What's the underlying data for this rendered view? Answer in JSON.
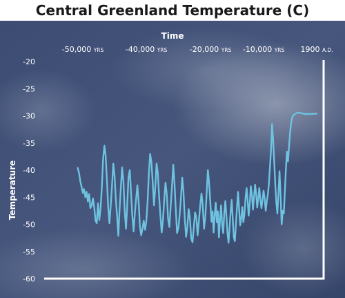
{
  "chart_data": {
    "type": "line",
    "title": "Central Greenland Temperature (C)",
    "xlabel": "Time",
    "ylabel": "Temperature",
    "xticks": [
      {
        "label": "-50,000",
        "unit": "YRS"
      },
      {
        "label": "-40,000",
        "unit": "YRS"
      },
      {
        "label": "-20,000",
        "unit": "YRS"
      },
      {
        "label": "-10,000",
        "unit": "YRS"
      },
      {
        "label": "1900",
        "unit": "A.D."
      }
    ],
    "yticks": [
      "-20",
      "-25",
      "-30",
      "-35",
      "-40",
      "-45",
      "-50",
      "-55",
      "-60"
    ],
    "ylim": [
      -60,
      -20
    ],
    "grid": false,
    "colors": {
      "line": "#6ec3e0",
      "axis": "#ffffff",
      "background": "#3b4a6e"
    },
    "x_note": "Values are the x-axis position in units of the printed tick sequence: 0 = -50,000 YRS, 1 = -40,000 YRS, 2 = -20,000 YRS, 3 = -10,000 YRS, 4 = 1900 A.D.",
    "series": [
      {
        "name": "",
        "points": [
          [
            -0.08,
            -39.6
          ],
          [
            -0.06,
            -40.5
          ],
          [
            -0.04,
            -42
          ],
          [
            -0.02,
            -43.1
          ],
          [
            0.0,
            -44.2
          ],
          [
            0.02,
            -43.5
          ],
          [
            0.04,
            -45
          ],
          [
            0.06,
            -44
          ],
          [
            0.08,
            -45.8
          ],
          [
            0.1,
            -44.4
          ],
          [
            0.12,
            -47
          ],
          [
            0.14,
            -46.5
          ],
          [
            0.16,
            -45.2
          ],
          [
            0.18,
            -46.9
          ],
          [
            0.2,
            -49.3
          ],
          [
            0.22,
            -49.8
          ],
          [
            0.24,
            -46.1
          ],
          [
            0.26,
            -49.2
          ],
          [
            0.28,
            -47
          ],
          [
            0.3,
            -43.2
          ],
          [
            0.32,
            -38
          ],
          [
            0.34,
            -35.5
          ],
          [
            0.36,
            -37.3
          ],
          [
            0.38,
            -42
          ],
          [
            0.4,
            -46.8
          ],
          [
            0.42,
            -49.8
          ],
          [
            0.44,
            -46.5
          ],
          [
            0.46,
            -43
          ],
          [
            0.48,
            -38.8
          ],
          [
            0.5,
            -41
          ],
          [
            0.52,
            -45.2
          ],
          [
            0.54,
            -48.5
          ],
          [
            0.56,
            -52.1
          ],
          [
            0.58,
            -47
          ],
          [
            0.6,
            -43.1
          ],
          [
            0.62,
            -39.5
          ],
          [
            0.64,
            -42.2
          ],
          [
            0.66,
            -47.5
          ],
          [
            0.68,
            -50.8
          ],
          [
            0.7,
            -46.5
          ],
          [
            0.72,
            -41.3
          ],
          [
            0.74,
            -40
          ],
          [
            0.76,
            -44.2
          ],
          [
            0.78,
            -48.5
          ],
          [
            0.8,
            -51.3
          ],
          [
            0.82,
            -48
          ],
          [
            0.84,
            -45.3
          ],
          [
            0.86,
            -42.8
          ],
          [
            0.88,
            -46
          ],
          [
            0.9,
            -50.4
          ],
          [
            0.92,
            -52
          ],
          [
            0.94,
            -50.8
          ],
          [
            0.96,
            -49.3
          ],
          [
            0.98,
            -51
          ],
          [
            1.0,
            -49.5
          ],
          [
            1.02,
            -45.8
          ],
          [
            1.04,
            -40.8
          ],
          [
            1.06,
            -37
          ],
          [
            1.08,
            -38.5
          ],
          [
            1.1,
            -42.2
          ],
          [
            1.12,
            -46.5
          ],
          [
            1.14,
            -43.3
          ],
          [
            1.16,
            -38.8
          ],
          [
            1.18,
            -40.5
          ],
          [
            1.2,
            -44.8
          ],
          [
            1.22,
            -48.5
          ],
          [
            1.24,
            -51.5
          ],
          [
            1.26,
            -49.2
          ],
          [
            1.28,
            -45.5
          ],
          [
            1.3,
            -42.3
          ],
          [
            1.32,
            -44.6
          ],
          [
            1.34,
            -49
          ],
          [
            1.36,
            -50.5
          ],
          [
            1.38,
            -46.8
          ],
          [
            1.4,
            -43.2
          ],
          [
            1.42,
            -39
          ],
          [
            1.44,
            -42.5
          ],
          [
            1.46,
            -47.3
          ],
          [
            1.48,
            -51.6
          ],
          [
            1.5,
            -50.7
          ],
          [
            1.52,
            -48.2
          ],
          [
            1.54,
            -45.2
          ],
          [
            1.56,
            -41.4
          ],
          [
            1.58,
            -44
          ],
          [
            1.6,
            -49
          ],
          [
            1.62,
            -52.3
          ],
          [
            1.64,
            -50.5
          ],
          [
            1.66,
            -47.2
          ],
          [
            1.68,
            -48.8
          ],
          [
            1.7,
            -52.6
          ],
          [
            1.72,
            -53.3
          ],
          [
            1.74,
            -50.7
          ],
          [
            1.76,
            -47.8
          ],
          [
            1.78,
            -48.7
          ],
          [
            1.8,
            -52
          ],
          [
            1.82,
            -49.3
          ],
          [
            1.84,
            -46.6
          ],
          [
            1.86,
            -44.3
          ],
          [
            1.88,
            -46.4
          ],
          [
            1.9,
            -50.8
          ],
          [
            1.92,
            -48.6
          ],
          [
            1.94,
            -44.5
          ],
          [
            1.96,
            -40
          ],
          [
            1.98,
            -42.5
          ],
          [
            2.0,
            -46.3
          ],
          [
            2.02,
            -49.5
          ],
          [
            2.04,
            -47.6
          ],
          [
            2.06,
            -51.5
          ],
          [
            2.08,
            -48.2
          ],
          [
            2.1,
            -46
          ],
          [
            2.12,
            -49.6
          ],
          [
            2.14,
            -47.6
          ],
          [
            2.16,
            -52.4
          ],
          [
            2.18,
            -49
          ],
          [
            2.2,
            -46.5
          ],
          [
            2.22,
            -49.9
          ],
          [
            2.24,
            -51.6
          ],
          [
            2.26,
            -48
          ],
          [
            2.28,
            -45.7
          ],
          [
            2.3,
            -48.3
          ],
          [
            2.32,
            -51.5
          ],
          [
            2.34,
            -53.4
          ],
          [
            2.36,
            -50.7
          ],
          [
            2.38,
            -47.6
          ],
          [
            2.4,
            -45.5
          ],
          [
            2.42,
            -49
          ],
          [
            2.44,
            -52.4
          ],
          [
            2.46,
            -53.1
          ],
          [
            2.48,
            -49.8
          ],
          [
            2.5,
            -46.8
          ],
          [
            2.52,
            -44
          ],
          [
            2.54,
            -47.3
          ],
          [
            2.56,
            -50.2
          ],
          [
            2.58,
            -48.8
          ],
          [
            2.6,
            -46.8
          ],
          [
            2.62,
            -49.6
          ],
          [
            2.64,
            -48.1
          ],
          [
            2.66,
            -45.2
          ],
          [
            2.68,
            -43.3
          ],
          [
            2.7,
            -45.7
          ],
          [
            2.72,
            -48.4
          ],
          [
            2.74,
            -46.1
          ],
          [
            2.76,
            -43
          ],
          [
            2.78,
            -44.6
          ],
          [
            2.8,
            -47.3
          ],
          [
            2.82,
            -45
          ],
          [
            2.84,
            -42.7
          ],
          [
            2.86,
            -44.3
          ],
          [
            2.88,
            -46.9
          ],
          [
            2.9,
            -45.1
          ],
          [
            2.92,
            -43.3
          ],
          [
            2.94,
            -45.5
          ],
          [
            2.96,
            -47
          ],
          [
            2.98,
            -45.4
          ],
          [
            3.0,
            -43.8
          ],
          [
            3.02,
            -45.2
          ],
          [
            3.04,
            -47.5
          ],
          [
            3.06,
            -45.8
          ],
          [
            3.08,
            -44.5
          ],
          [
            3.1,
            -42.5
          ],
          [
            3.12,
            -39.5
          ],
          [
            3.14,
            -36.2
          ],
          [
            3.16,
            -31.5
          ],
          [
            3.18,
            -34.6
          ],
          [
            3.2,
            -38.3
          ],
          [
            3.22,
            -42.5
          ],
          [
            3.24,
            -46
          ],
          [
            3.26,
            -48
          ],
          [
            3.28,
            -44.2
          ],
          [
            3.3,
            -40.2
          ],
          [
            3.32,
            -44.6
          ],
          [
            3.34,
            -50
          ],
          [
            3.36,
            -47.5
          ],
          [
            3.38,
            -48
          ],
          [
            3.4,
            -44
          ],
          [
            3.42,
            -40
          ],
          [
            3.44,
            -36.6
          ],
          [
            3.46,
            -38.4
          ],
          [
            3.48,
            -35.4
          ],
          [
            3.5,
            -33
          ],
          [
            3.52,
            -31.2
          ],
          [
            3.54,
            -30.3
          ],
          [
            3.56,
            -29.9
          ],
          [
            3.6,
            -29.6
          ],
          [
            3.65,
            -29.4
          ],
          [
            3.7,
            -29.5
          ],
          [
            3.75,
            -29.6
          ],
          [
            3.8,
            -29.7
          ],
          [
            3.85,
            -29.6
          ],
          [
            3.9,
            -29.7
          ],
          [
            3.95,
            -29.6
          ],
          [
            4.0,
            -29.6
          ]
        ]
      }
    ]
  }
}
